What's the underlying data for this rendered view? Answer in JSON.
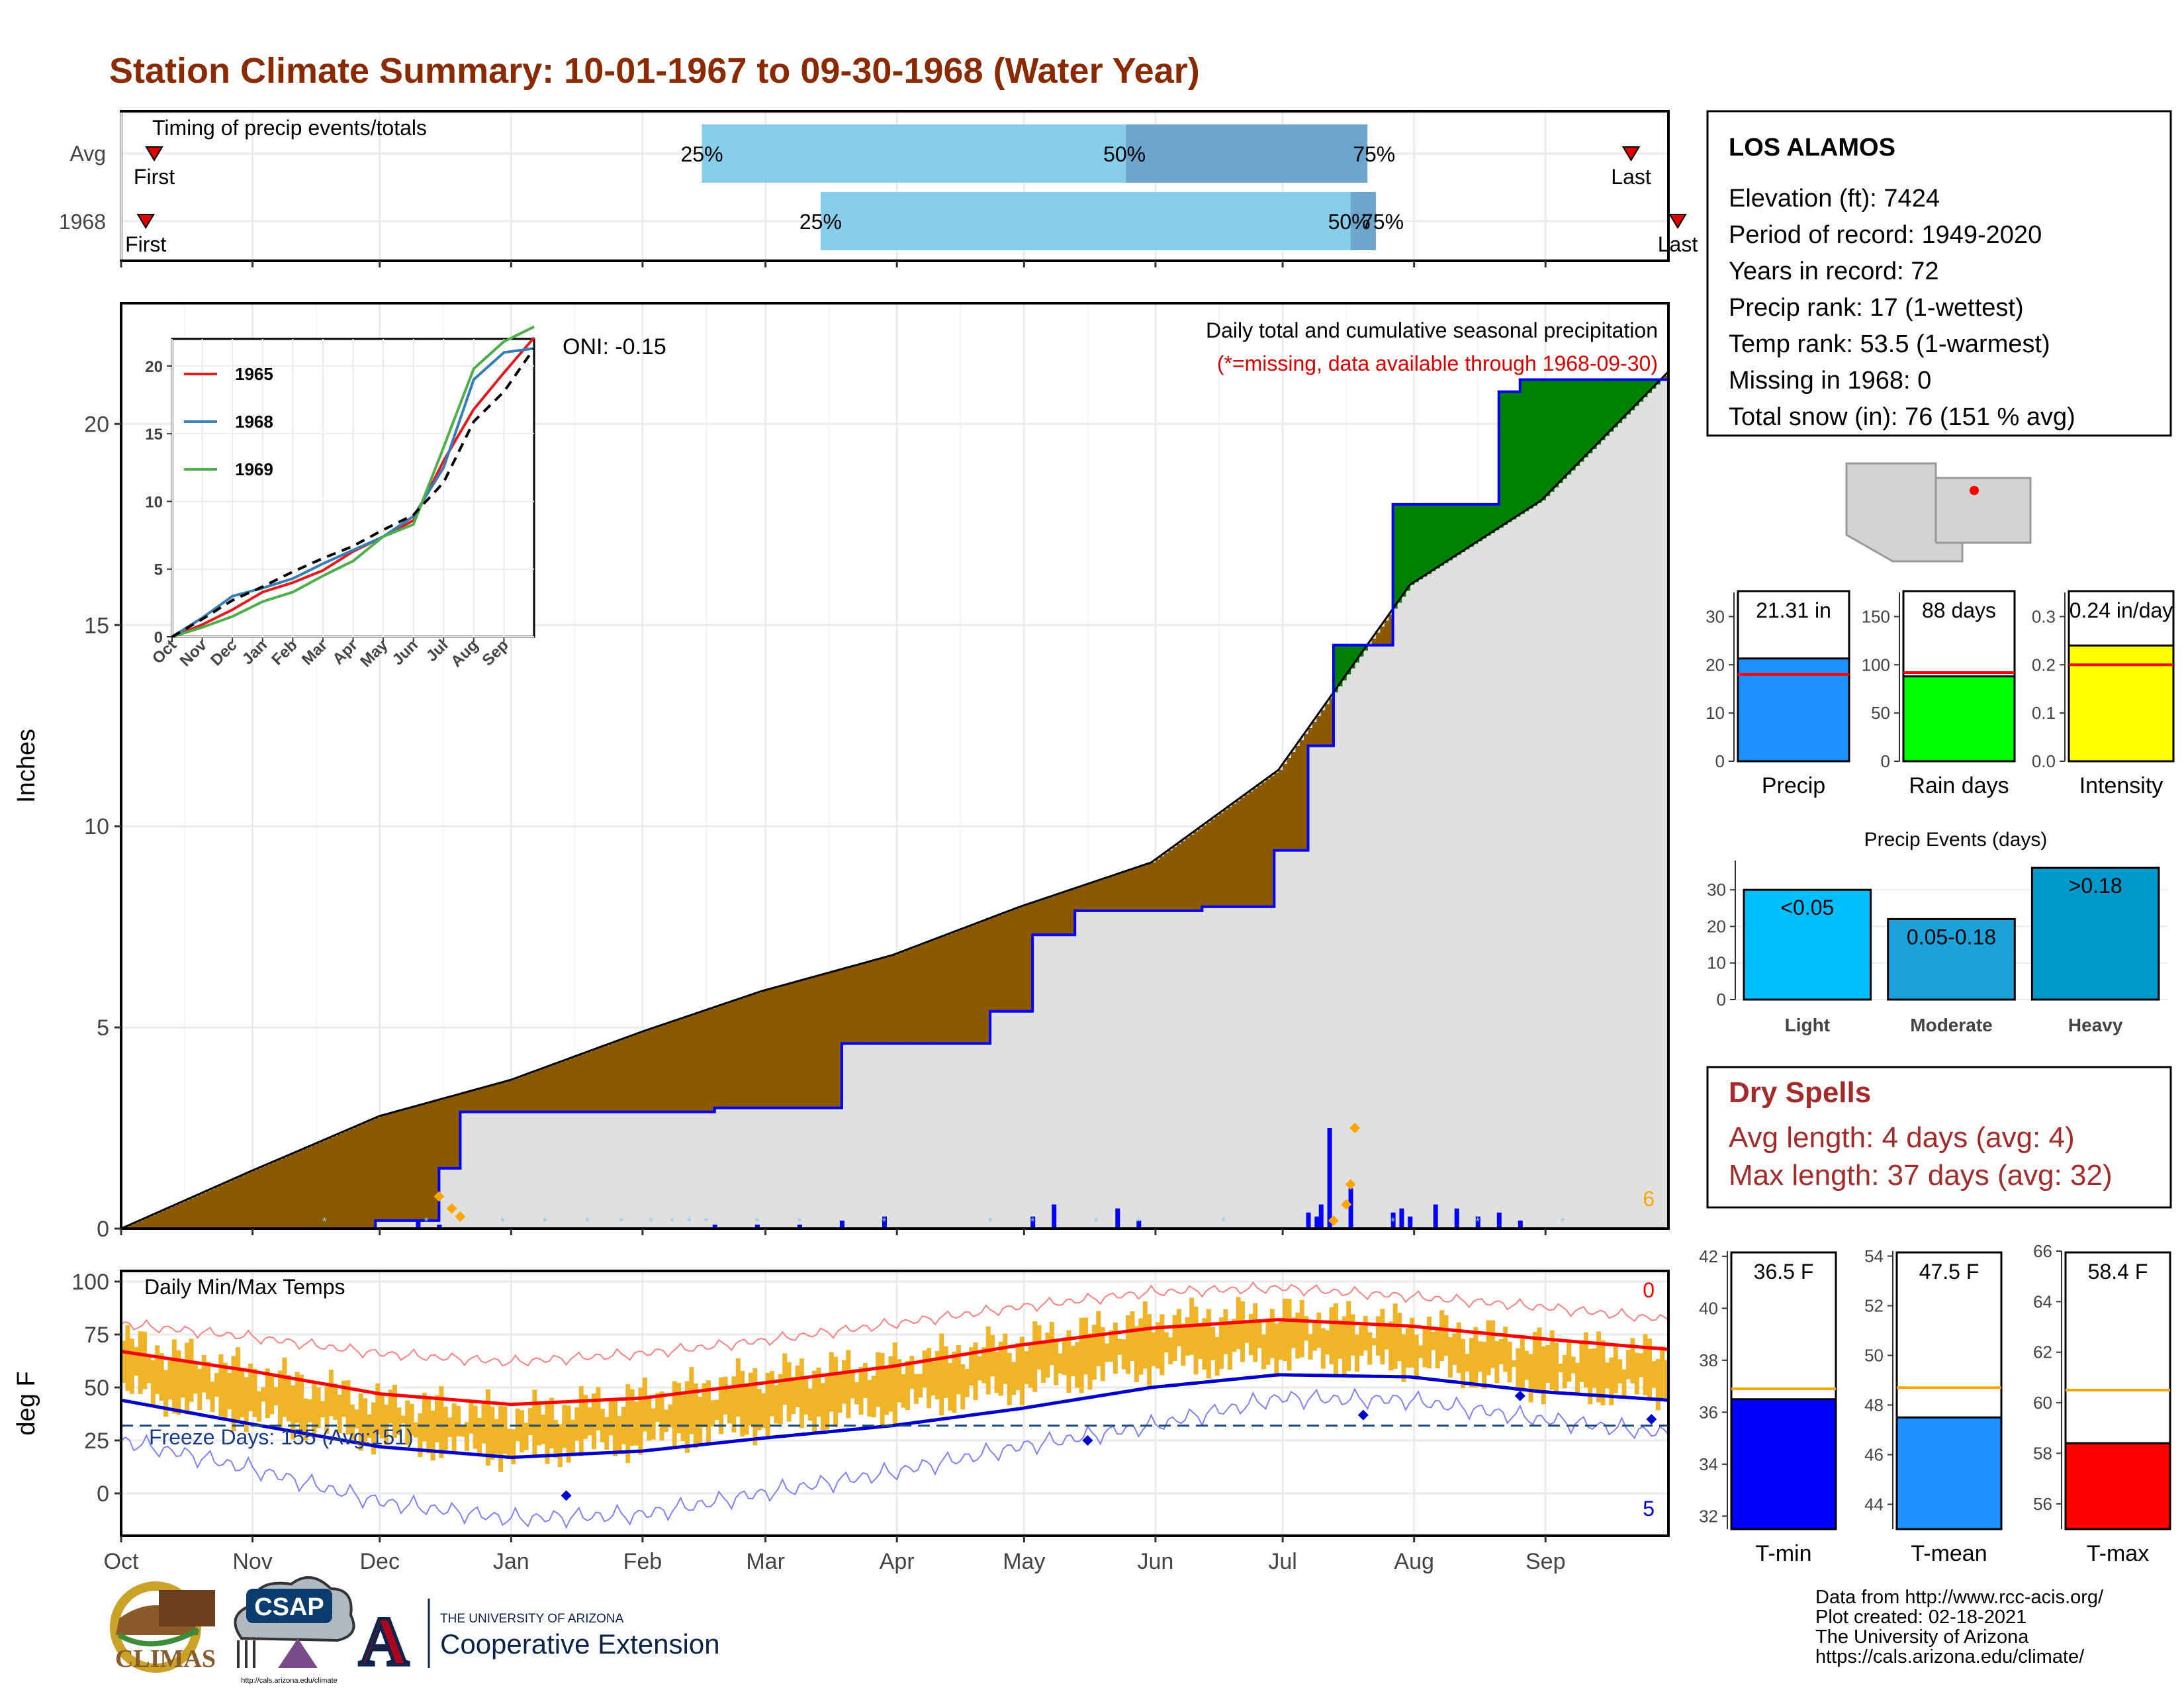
{
  "title": "Station Climate Summary: 10-01-1967 to 09-30-1968 (Water Year)",
  "timing": {
    "title": "Timing of precip events/totals",
    "rows": [
      "Avg",
      "1968"
    ],
    "first_label": "First",
    "last_label": "Last",
    "pct_labels": [
      "25%",
      "50%",
      "75%"
    ],
    "avg": {
      "first_doy": 5,
      "p25": 137,
      "p50": 237,
      "p75": 294,
      "last_doy": 354
    },
    "y1968": {
      "first_doy": 3,
      "p25": 165,
      "p50": 290,
      "p75": 296,
      "last_doy": 365
    },
    "colors": {
      "light": "#87ceeb",
      "dark": "#6ca6cd"
    }
  },
  "main": {
    "ylabel": "Inches",
    "yticks": [
      "0",
      "5",
      "10",
      "15",
      "20"
    ],
    "ylim": [
      0,
      23
    ],
    "months": [
      "Oct",
      "Nov",
      "Dec",
      "Jan",
      "Feb",
      "Mar",
      "Apr",
      "May",
      "Jun",
      "Jul",
      "Aug",
      "Sep"
    ],
    "header_line1": "Daily total and cumulative seasonal precipitation",
    "header_line2": "(*=missing, data available through 1968-09-30)",
    "oni": "ONI: -0.15",
    "corner_count": "6",
    "colors": {
      "below": "#8b5a00",
      "above": "#008000",
      "avg_fill": "#e0e0e0",
      "obs": "#0000ff",
      "snow": "#87ceeb",
      "marker": "#ffa500"
    }
  },
  "chart_data": [
    {
      "type": "line",
      "name": "cumulative-precip",
      "x_unit": "day of water year",
      "series": [
        {
          "name": "Average cumulative",
          "x": [
            0,
            30,
            61,
            92,
            123,
            151,
            182,
            212,
            243,
            273,
            304,
            335,
            365
          ],
          "values": [
            0,
            1.4,
            2.8,
            3.7,
            4.9,
            5.9,
            6.8,
            8.0,
            9.1,
            11.4,
            16.0,
            18.1,
            21.3
          ]
        },
        {
          "name": "1968 cumulative",
          "x": [
            0,
            60,
            75,
            80,
            140,
            170,
            205,
            215,
            225,
            255,
            272,
            280,
            286,
            300,
            325,
            330,
            365
          ],
          "values": [
            0,
            0.2,
            1.5,
            2.9,
            3.0,
            4.6,
            5.4,
            7.3,
            7.9,
            8.0,
            9.4,
            12.0,
            14.5,
            18.0,
            20.8,
            21.1,
            21.3
          ]
        },
        {
          "name": "Daily precip (notable days)",
          "x": [
            70,
            75,
            140,
            150,
            160,
            170,
            180,
            215,
            220,
            235,
            240,
            280,
            282,
            283,
            285,
            290,
            300,
            302,
            304,
            310,
            315,
            320,
            325,
            330
          ],
          "values": [
            0.2,
            0.1,
            0.1,
            0.1,
            0.1,
            0.2,
            0.3,
            0.3,
            0.6,
            0.5,
            0.2,
            0.4,
            0.3,
            0.6,
            2.5,
            1.0,
            0.4,
            0.5,
            0.3,
            0.6,
            0.5,
            0.3,
            0.4,
            0.2
          ]
        }
      ]
    },
    {
      "type": "line",
      "name": "inset-cumulative",
      "categories": [
        "Oct",
        "Nov",
        "Dec",
        "Jan",
        "Feb",
        "Mar",
        "Apr",
        "May",
        "Jun",
        "Jul",
        "Aug",
        "Sep"
      ],
      "ylim": [
        0,
        22
      ],
      "yticks": [
        "0",
        "5",
        "10",
        "15",
        "20"
      ],
      "series": [
        {
          "name": "1965",
          "color": "#e41a1c",
          "x": [
            0,
            1,
            2,
            3,
            4,
            5,
            6,
            7,
            8,
            9,
            10,
            11,
            12
          ],
          "values": [
            0,
            0.9,
            2.0,
            3.3,
            4.0,
            4.9,
            6.3,
            7.4,
            8.6,
            13.0,
            16.8,
            19.5,
            22.1
          ]
        },
        {
          "name": "1968",
          "color": "#377eb8",
          "x": [
            0,
            1,
            2,
            3,
            4,
            5,
            6,
            7,
            8,
            9,
            10,
            11,
            12
          ],
          "values": [
            0,
            1.4,
            3.0,
            3.6,
            4.3,
            5.4,
            6.4,
            7.4,
            8.9,
            12.5,
            19.0,
            21.0,
            21.3
          ]
        },
        {
          "name": "1969",
          "color": "#4daf4a",
          "x": [
            0,
            1,
            2,
            3,
            4,
            5,
            6,
            7,
            8,
            9,
            10,
            11,
            12
          ],
          "values": [
            0,
            0.7,
            1.5,
            2.6,
            3.3,
            4.5,
            5.6,
            7.4,
            8.3,
            14.0,
            19.8,
            21.8,
            22.9
          ]
        },
        {
          "name": "",
          "color": "#000000",
          "dashed": true,
          "x": [
            0,
            1,
            2,
            3,
            4,
            5,
            6,
            7,
            8,
            9,
            10,
            11,
            12
          ],
          "values": [
            0,
            1.3,
            2.7,
            3.7,
            4.8,
            5.8,
            6.7,
            7.9,
            9.0,
            11.4,
            15.9,
            18.1,
            21.3
          ]
        }
      ]
    },
    {
      "type": "bar",
      "name": "daily-temps",
      "ylabel": "deg F",
      "ylim": [
        -20,
        105
      ],
      "yticks": [
        "0",
        "25",
        "50",
        "75",
        "100"
      ],
      "title": "Daily Min/Max Temps",
      "freeze_label": "Freeze Days: 155 (Avg:151)",
      "freeze_line": 32,
      "count_high": "0",
      "count_low": "5",
      "series": [
        {
          "name": "Avg max",
          "x": [
            0,
            30,
            61,
            92,
            123,
            151,
            182,
            212,
            243,
            273,
            304,
            335,
            365
          ],
          "values": [
            67,
            58,
            47,
            42,
            45,
            52,
            60,
            70,
            78,
            82,
            79,
            73,
            68
          ]
        },
        {
          "name": "Avg min",
          "x": [
            0,
            30,
            61,
            92,
            123,
            151,
            182,
            212,
            243,
            273,
            304,
            335,
            365
          ],
          "values": [
            44,
            33,
            22,
            17,
            20,
            26,
            32,
            40,
            50,
            56,
            55,
            48,
            44
          ]
        },
        {
          "name": "Record max",
          "x": [
            0,
            30,
            61,
            92,
            123,
            151,
            182,
            212,
            243,
            273,
            304,
            335,
            365
          ],
          "values": [
            80,
            74,
            66,
            62,
            66,
            72,
            80,
            88,
            95,
            97,
            93,
            88,
            82
          ]
        },
        {
          "name": "Record min",
          "x": [
            0,
            30,
            61,
            92,
            123,
            151,
            182,
            212,
            243,
            273,
            304,
            335,
            365
          ],
          "values": [
            25,
            12,
            -4,
            -12,
            -10,
            0,
            10,
            22,
            32,
            45,
            44,
            35,
            28
          ]
        },
        {
          "name": "1968 daily max (sampled)",
          "x": [
            0,
            30,
            61,
            92,
            123,
            151,
            182,
            212,
            243,
            273,
            304,
            335,
            365
          ],
          "values": [
            72,
            58,
            44,
            38,
            46,
            56,
            62,
            72,
            82,
            85,
            80,
            70,
            66
          ]
        },
        {
          "name": "1968 daily min (sampled)",
          "x": [
            0,
            30,
            61,
            92,
            123,
            151,
            182,
            212,
            243,
            273,
            304,
            335,
            365
          ],
          "values": [
            42,
            30,
            20,
            12,
            18,
            26,
            34,
            44,
            54,
            58,
            55,
            44,
            40
          ]
        }
      ]
    },
    {
      "type": "bar",
      "name": "precip-summary",
      "categories": [
        "Precip",
        "Rain days",
        "Intensity"
      ],
      "values": [
        21.31,
        88,
        0.24
      ],
      "averages": [
        18.0,
        92,
        0.2
      ],
      "value_labels": [
        "21.31 in",
        "88 days",
        "0.24 in/day"
      ],
      "ylims": [
        [
          0,
          35
        ],
        [
          0,
          175
        ],
        [
          0,
          0.35
        ]
      ],
      "yticks": [
        [
          "0",
          "10",
          "20",
          "30"
        ],
        [
          "0",
          "50",
          "100",
          "150"
        ],
        [
          "0.0",
          "0.1",
          "0.2",
          "0.3"
        ]
      ],
      "colors": [
        "#1e90ff",
        "#00ff00",
        "#ffff00"
      ]
    },
    {
      "type": "bar",
      "name": "precip-events",
      "title": "Precip Events (days)",
      "categories": [
        "Light",
        "Moderate",
        "Heavy"
      ],
      "bar_labels": [
        "<0.05",
        "0.05-0.18",
        ">0.18"
      ],
      "values": [
        30,
        22,
        36
      ],
      "ylim": [
        0,
        38
      ],
      "yticks": [
        "0",
        "10",
        "20",
        "30"
      ],
      "colors": [
        "#00bfff",
        "#1ca3dc",
        "#0099cc"
      ]
    },
    {
      "type": "bar",
      "name": "temp-summary",
      "categories": [
        "T-min",
        "T-mean",
        "T-max"
      ],
      "values": [
        36.5,
        47.5,
        58.4
      ],
      "averages": [
        36.9,
        48.7,
        60.5
      ],
      "value_labels": [
        "36.5 F",
        "47.5 F",
        "58.4 F"
      ],
      "ylims": [
        [
          31.5,
          42.2
        ],
        [
          43.0,
          54.2
        ],
        [
          55.0,
          66.0
        ]
      ],
      "yticks": [
        [
          "32",
          "34",
          "36",
          "38",
          "40",
          "42"
        ],
        [
          "44",
          "46",
          "48",
          "50",
          "52",
          "54"
        ],
        [
          "56",
          "58",
          "60",
          "62",
          "64",
          "66"
        ]
      ],
      "colors": [
        "#0000ff",
        "#1e90ff",
        "#ff0000"
      ]
    }
  ],
  "station": {
    "name": "LOS ALAMOS",
    "lines": [
      "Elevation (ft): 7424",
      "Period of record: 1949-2020",
      "Years in record: 72",
      "Precip rank: 17 (1-wettest)",
      "Temp rank: 53.5 (1-warmest)",
      "Missing in 1968: 0",
      "Total snow (in): 76 (151 % avg)"
    ]
  },
  "dry_spells": {
    "title": "Dry Spells",
    "avg_line": "Avg length: 4 days (avg: 4)",
    "max_line": "Max length: 37 days (avg: 32)"
  },
  "footer": {
    "lines": [
      "Data from http://www.rcc-acis.org/",
      "Plot created: 02-18-2021",
      "The University of Arizona",
      "https://cals.arizona.edu/climate/"
    ],
    "logo_climas": "CLIMAS",
    "logo_csap": "CSAP",
    "csap_url": "http://cals.arizona.edu/climate",
    "ua_small": "THE UNIVERSITY OF ARIZONA",
    "ua_big": "Cooperative Extension",
    "ua_letter": "A"
  }
}
